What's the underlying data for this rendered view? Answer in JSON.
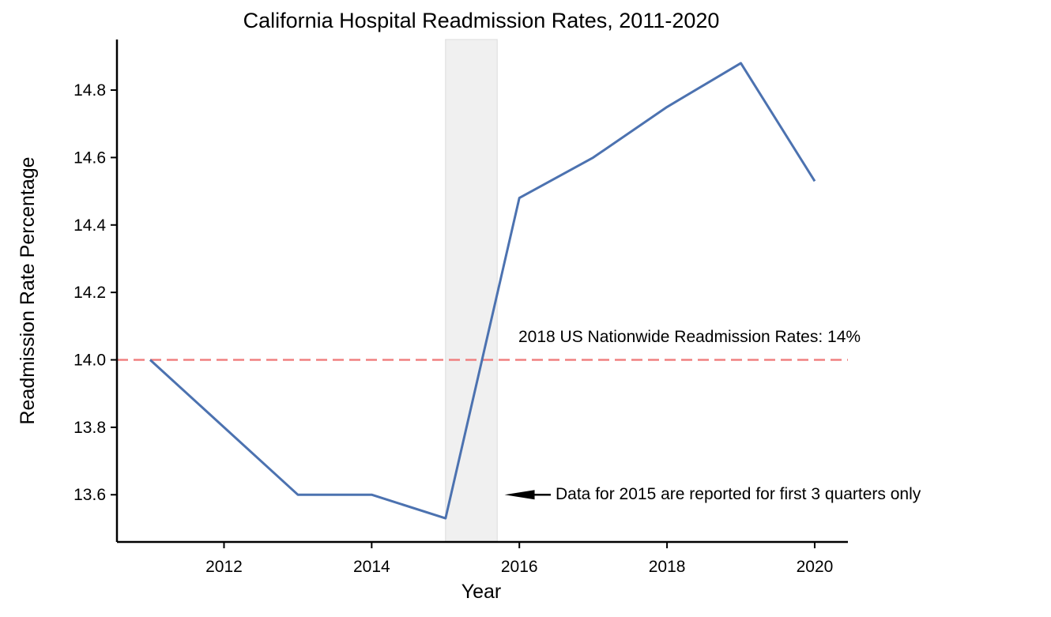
{
  "chart_data": {
    "type": "line",
    "title": "California Hospital Readmission Rates, 2011-2020",
    "xlabel": "Year",
    "ylabel": "Readmission Rate Percentage",
    "x": [
      2011,
      2012,
      2013,
      2014,
      2015,
      2016,
      2017,
      2018,
      2019,
      2020
    ],
    "series": [
      {
        "values": [
          14.0,
          13.8,
          13.6,
          13.6,
          13.53,
          14.48,
          14.6,
          14.75,
          14.88,
          14.53
        ]
      }
    ],
    "xlim": [
      2010.55,
      2020.45
    ],
    "ylim": [
      13.46,
      14.95
    ],
    "x_ticks": [
      2012,
      2014,
      2016,
      2018,
      2020
    ],
    "x_tick_labels": [
      "2012",
      "2014",
      "2016",
      "2018",
      "2020"
    ],
    "y_ticks": [
      13.6,
      13.8,
      14.0,
      14.2,
      14.4,
      14.6,
      14.8
    ],
    "y_tick_labels": [
      "13.6",
      "13.8",
      "14.0",
      "14.2",
      "14.4",
      "14.6",
      "14.8"
    ],
    "shaded_span": {
      "x_start": 2015,
      "x_end": 2015.7
    },
    "reference_line": {
      "y": 14.0,
      "label": "2018 US Nationwide Readmission Rates: 14%"
    },
    "arrow_annotation": {
      "text": "Data for 2015 are reported for first 3 quarters only",
      "target_x": 2015.8,
      "target_y": 13.6
    },
    "grid": false,
    "colors": {
      "line": "#4c72b0",
      "reference": "#f08080",
      "span": "#f0f0f0"
    }
  }
}
